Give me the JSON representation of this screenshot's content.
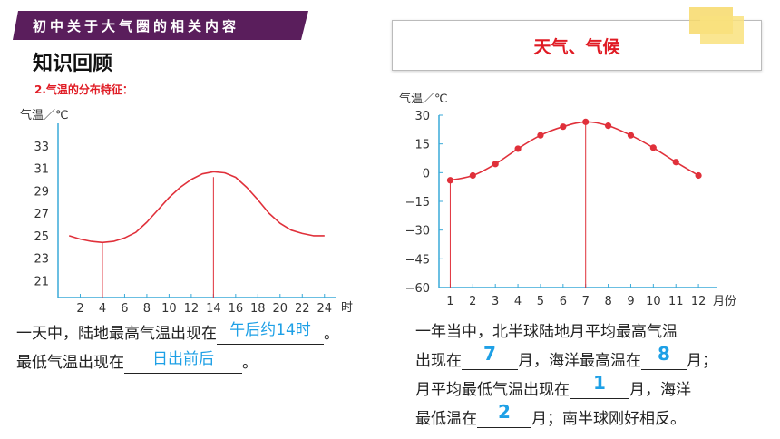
{
  "header": {
    "banner": "初中关于大气圈的相关内容",
    "section_title": "知识回顾",
    "subtitle": "2.气温的分布特征：",
    "topic": "天气、气候"
  },
  "chart_data": [
    {
      "type": "line",
      "ylabel": "气温／℃",
      "xlabel": "时",
      "x_ticks": [
        "2",
        "4",
        "6",
        "8",
        "10",
        "12",
        "14",
        "16",
        "18",
        "20",
        "22",
        "24"
      ],
      "y_ticks": [
        "21",
        "23",
        "25",
        "27",
        "29",
        "31",
        "33"
      ],
      "xlim": [
        0,
        25
      ],
      "ylim": [
        19.5,
        35
      ],
      "x": [
        1,
        2,
        3,
        4,
        5,
        6,
        7,
        8,
        9,
        10,
        11,
        12,
        13,
        14,
        15,
        16,
        17,
        18,
        19,
        20,
        21,
        22,
        23,
        24
      ],
      "values": [
        25,
        24.7,
        24.5,
        24.4,
        24.5,
        24.8,
        25.3,
        26.2,
        27.3,
        28.4,
        29.3,
        30.0,
        30.5,
        30.7,
        30.6,
        30.2,
        29.3,
        28.2,
        27.0,
        26.1,
        25.5,
        25.2,
        25.0,
        25.0
      ],
      "color": "#e0303a",
      "markers": [
        4,
        14
      ]
    },
    {
      "type": "line",
      "ylabel": "气温／℃",
      "xlabel": "月份",
      "x_ticks": [
        "1",
        "2",
        "3",
        "4",
        "5",
        "6",
        "7",
        "8",
        "9",
        "10",
        "11",
        "12"
      ],
      "y_ticks": [
        "30",
        "15",
        "0",
        "−15",
        "−30",
        "−45",
        "−60"
      ],
      "xlim": [
        0.5,
        12.8
      ],
      "ylim": [
        -60,
        30
      ],
      "x": [
        1,
        2,
        3,
        4,
        5,
        6,
        7,
        8,
        9,
        10,
        11,
        12
      ],
      "values": [
        -4,
        -1.5,
        4.5,
        12.5,
        19.5,
        24,
        26.5,
        24.5,
        19.5,
        13,
        5.5,
        -1.5
      ],
      "color": "#e0303a",
      "markers": [
        1,
        7
      ]
    }
  ],
  "left_text": {
    "line1_prefix": "一天中，陆地最高气温出现在",
    "line1_answer": "午后约14时",
    "line1_suffix": "。",
    "line2_prefix": "最低气温出现在",
    "line2_answer": "日出前后",
    "line2_suffix": "。"
  },
  "right_text": {
    "line1": "一年当中，北半球陆地月平均最高气温",
    "line2_prefix": "出现在",
    "line2_answer1": "7",
    "line2_middle": "月，海洋最高温在",
    "line2_answer2": "8",
    "line2_suffix": "月；",
    "line3_prefix": "月平均最低气温出现在",
    "line3_answer": "1",
    "line3_suffix": "月，海洋",
    "line4_prefix": "最低温在",
    "line4_answer": "2",
    "line4_suffix": "月；南半球刚好相反。"
  }
}
